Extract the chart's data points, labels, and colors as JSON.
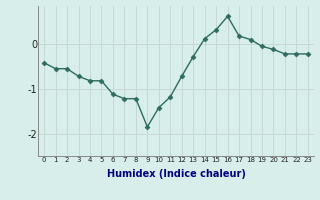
{
  "x": [
    0,
    1,
    2,
    3,
    4,
    5,
    6,
    7,
    8,
    9,
    10,
    11,
    12,
    13,
    14,
    15,
    16,
    17,
    18,
    19,
    20,
    21,
    22,
    23
  ],
  "y": [
    -0.42,
    -0.55,
    -0.55,
    -0.72,
    -0.82,
    -0.82,
    -1.12,
    -1.22,
    -1.22,
    -1.85,
    -1.42,
    -1.18,
    -0.72,
    -0.28,
    0.12,
    0.32,
    0.62,
    0.18,
    0.1,
    -0.05,
    -0.12,
    -0.22,
    -0.22,
    -0.22
  ],
  "xlabel": "Humidex (Indice chaleur)",
  "ylabel": "",
  "bg_color": "#d7eeea",
  "line_color": "#2e6b60",
  "marker_color": "#2e6b60",
  "vgrid_color": "#c8d8d5",
  "hgrid_color": "#c8d8d5",
  "yticks": [
    -2,
    -1,
    0
  ],
  "ylim": [
    -2.5,
    0.85
  ],
  "xlim": [
    -0.5,
    23.5
  ]
}
